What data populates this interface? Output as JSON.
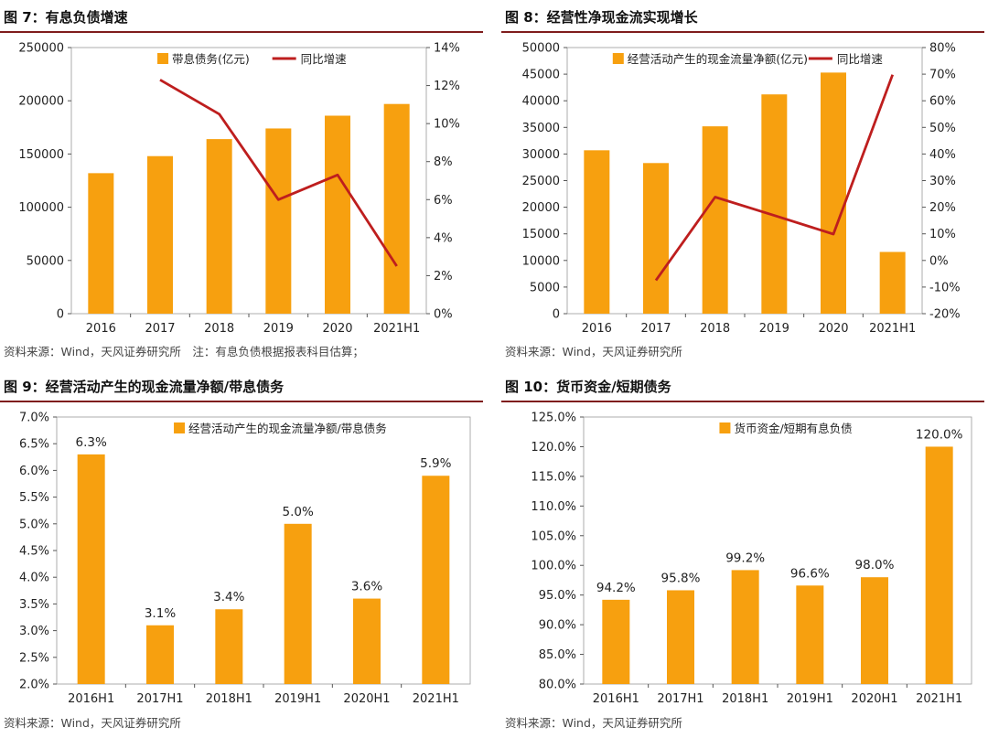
{
  "colors": {
    "bar": "#F7A00F",
    "line": "#BE1E1E",
    "title_rule": "#7F1D1D",
    "axis": "#333333"
  },
  "panels": [
    {
      "title": "图 7：有息负债增速",
      "source": "资料来源：Wind，天风证券研究所　注：有息负债根据报表科目估算；"
    },
    {
      "title": "图 8：经营性净现金流实现增长",
      "source": "资料来源：Wind，天风证券研究所"
    },
    {
      "title": "图 9：经营活动产生的现金流量净额/带息债务",
      "source": "资料来源：Wind，天风证券研究所"
    },
    {
      "title": "图 10：货币资金/短期债务",
      "source": "资料来源：Wind，天风证券研究所"
    }
  ],
  "chart_data": [
    {
      "type": "bar",
      "categories": [
        "2016",
        "2017",
        "2018",
        "2019",
        "2020",
        "2021H1"
      ],
      "series": [
        {
          "name": "带息债务(亿元)",
          "kind": "bar",
          "axis": "left",
          "values": [
            132000,
            148000,
            164000,
            174000,
            186000,
            197000
          ]
        },
        {
          "name": "同比增速",
          "kind": "line",
          "axis": "right",
          "values": [
            null,
            12.3,
            10.5,
            6.0,
            7.3,
            2.5
          ]
        }
      ],
      "ylim": [
        0,
        250000
      ],
      "yticks": [
        "0",
        "50000",
        "100000",
        "150000",
        "200000",
        "250000"
      ],
      "y2lim": [
        0,
        14
      ],
      "y2ticks": [
        "0%",
        "2%",
        "4%",
        "6%",
        "8%",
        "10%",
        "12%",
        "14%"
      ],
      "legend": "top"
    },
    {
      "type": "bar",
      "categories": [
        "2016",
        "2017",
        "2018",
        "2019",
        "2020",
        "2021H1"
      ],
      "series": [
        {
          "name": "经营活动产生的现金流量净额(亿元)",
          "kind": "bar",
          "axis": "left",
          "values": [
            30700,
            28300,
            35200,
            41200,
            45300,
            11600
          ]
        },
        {
          "name": "同比增速",
          "kind": "line",
          "axis": "right",
          "values": [
            null,
            -7.5,
            23.8,
            16.9,
            9.9,
            69.8
          ]
        }
      ],
      "ylim": [
        0,
        50000
      ],
      "yticks": [
        "0",
        "5000",
        "10000",
        "15000",
        "20000",
        "25000",
        "30000",
        "35000",
        "40000",
        "45000",
        "50000"
      ],
      "y2lim": [
        -20,
        80
      ],
      "y2ticks": [
        "-20%",
        "-10%",
        "0%",
        "10%",
        "20%",
        "30%",
        "40%",
        "50%",
        "60%",
        "70%",
        "80%"
      ],
      "legend": "top"
    },
    {
      "type": "bar",
      "categories": [
        "2016H1",
        "2017H1",
        "2018H1",
        "2019H1",
        "2020H1",
        "2021H1"
      ],
      "series": [
        {
          "name": "经营活动产生的现金流量净额/带息债务",
          "kind": "bar",
          "axis": "left",
          "values": [
            6.3,
            3.1,
            3.4,
            5.0,
            3.6,
            5.9
          ]
        }
      ],
      "data_labels": [
        "6.3%",
        "3.1%",
        "3.4%",
        "5.0%",
        "3.6%",
        "5.9%"
      ],
      "ylim": [
        2.0,
        7.0
      ],
      "yticks": [
        "2.0%",
        "2.5%",
        "3.0%",
        "3.5%",
        "4.0%",
        "4.5%",
        "5.0%",
        "5.5%",
        "6.0%",
        "6.5%",
        "7.0%"
      ],
      "legend": "top"
    },
    {
      "type": "bar",
      "categories": [
        "2016H1",
        "2017H1",
        "2018H1",
        "2019H1",
        "2020H1",
        "2021H1"
      ],
      "series": [
        {
          "name": "货币资金/短期有息负债",
          "kind": "bar",
          "axis": "left",
          "values": [
            94.2,
            95.8,
            99.2,
            96.6,
            98.0,
            120.0
          ]
        }
      ],
      "data_labels": [
        "94.2%",
        "95.8%",
        "99.2%",
        "96.6%",
        "98.0%",
        "120.0%"
      ],
      "ylim": [
        80,
        125
      ],
      "yticks": [
        "80.0%",
        "85.0%",
        "90.0%",
        "95.0%",
        "100.0%",
        "105.0%",
        "110.0%",
        "115.0%",
        "120.0%",
        "125.0%"
      ],
      "legend": "top"
    }
  ]
}
